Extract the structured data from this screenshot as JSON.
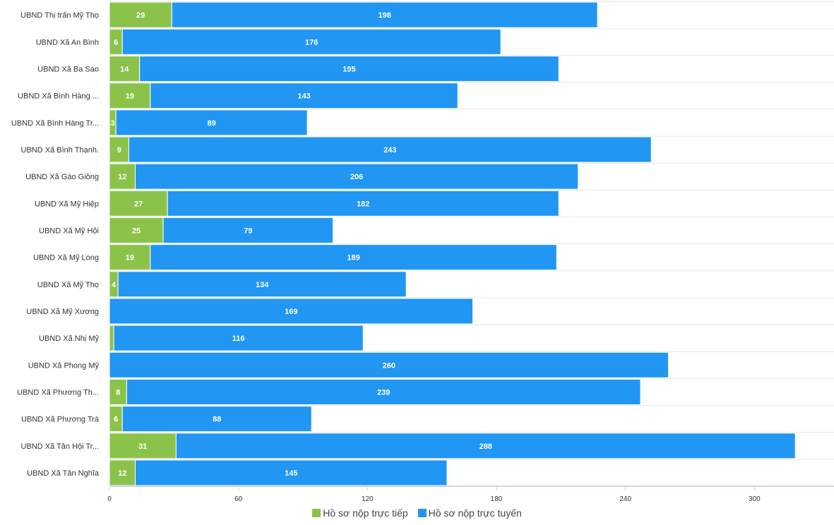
{
  "chart_data": {
    "type": "bar",
    "orientation": "horizontal",
    "stacked": true,
    "categories": [
      "UBND Thị trấn Mỹ Thọ",
      "UBND Xã An Bình",
      "UBND Xã Ba Sao",
      "UBND Xã Bình Hàng ...",
      "UBND Xã Bình Hàng Tr...",
      "UBND Xã Bình Thạnh.",
      "UBND Xã Gáo Giồng",
      "UBND Xã Mỹ Hiệp",
      "UBND Xã Mỹ Hội",
      "UBND Xã Mỹ Long",
      "UBND Xã Mỹ Thọ",
      "UBND Xã Mỹ Xương",
      "UBND Xã Nhị Mỹ",
      "UBND Xã Phong Mỹ",
      "UBND Xã Phương Th...",
      "UBND Xã Phương Trà",
      "UBND Xã Tân Hội Tr...",
      "UBND Xã Tân Nghĩa"
    ],
    "series": [
      {
        "name": "Hồ sơ nộp trực tiếp",
        "color": "#8bc34a",
        "values": [
          29,
          6,
          14,
          19,
          3,
          9,
          12,
          27,
          25,
          19,
          4,
          0,
          2,
          0,
          8,
          6,
          31,
          12
        ],
        "labels": [
          "29",
          "6",
          "14",
          "19",
          "3",
          "9",
          "12",
          "27",
          "25",
          "19",
          "4",
          "",
          "",
          "",
          "8",
          "6",
          "31",
          "12"
        ]
      },
      {
        "name": "Hồ sơ nộp trực tuyến",
        "color": "#2196f3",
        "values": [
          198,
          176,
          195,
          143,
          89,
          243,
          206,
          182,
          79,
          189,
          134,
          169,
          116,
          260,
          239,
          88,
          288,
          145
        ],
        "labels": [
          "198",
          "176",
          "195",
          "143",
          "89",
          "243",
          "206",
          "182",
          "79",
          "189",
          "134",
          "169",
          "116",
          "260",
          "239",
          "88",
          "288",
          "145"
        ]
      }
    ],
    "x_ticks": [
      "0",
      "60",
      "120",
      "180",
      "240",
      "300"
    ],
    "xlim": [
      0,
      337
    ],
    "title": "",
    "xlabel": "",
    "ylabel": "",
    "grid": "horizontal lines between categories",
    "legend_position": "bottom-center"
  }
}
